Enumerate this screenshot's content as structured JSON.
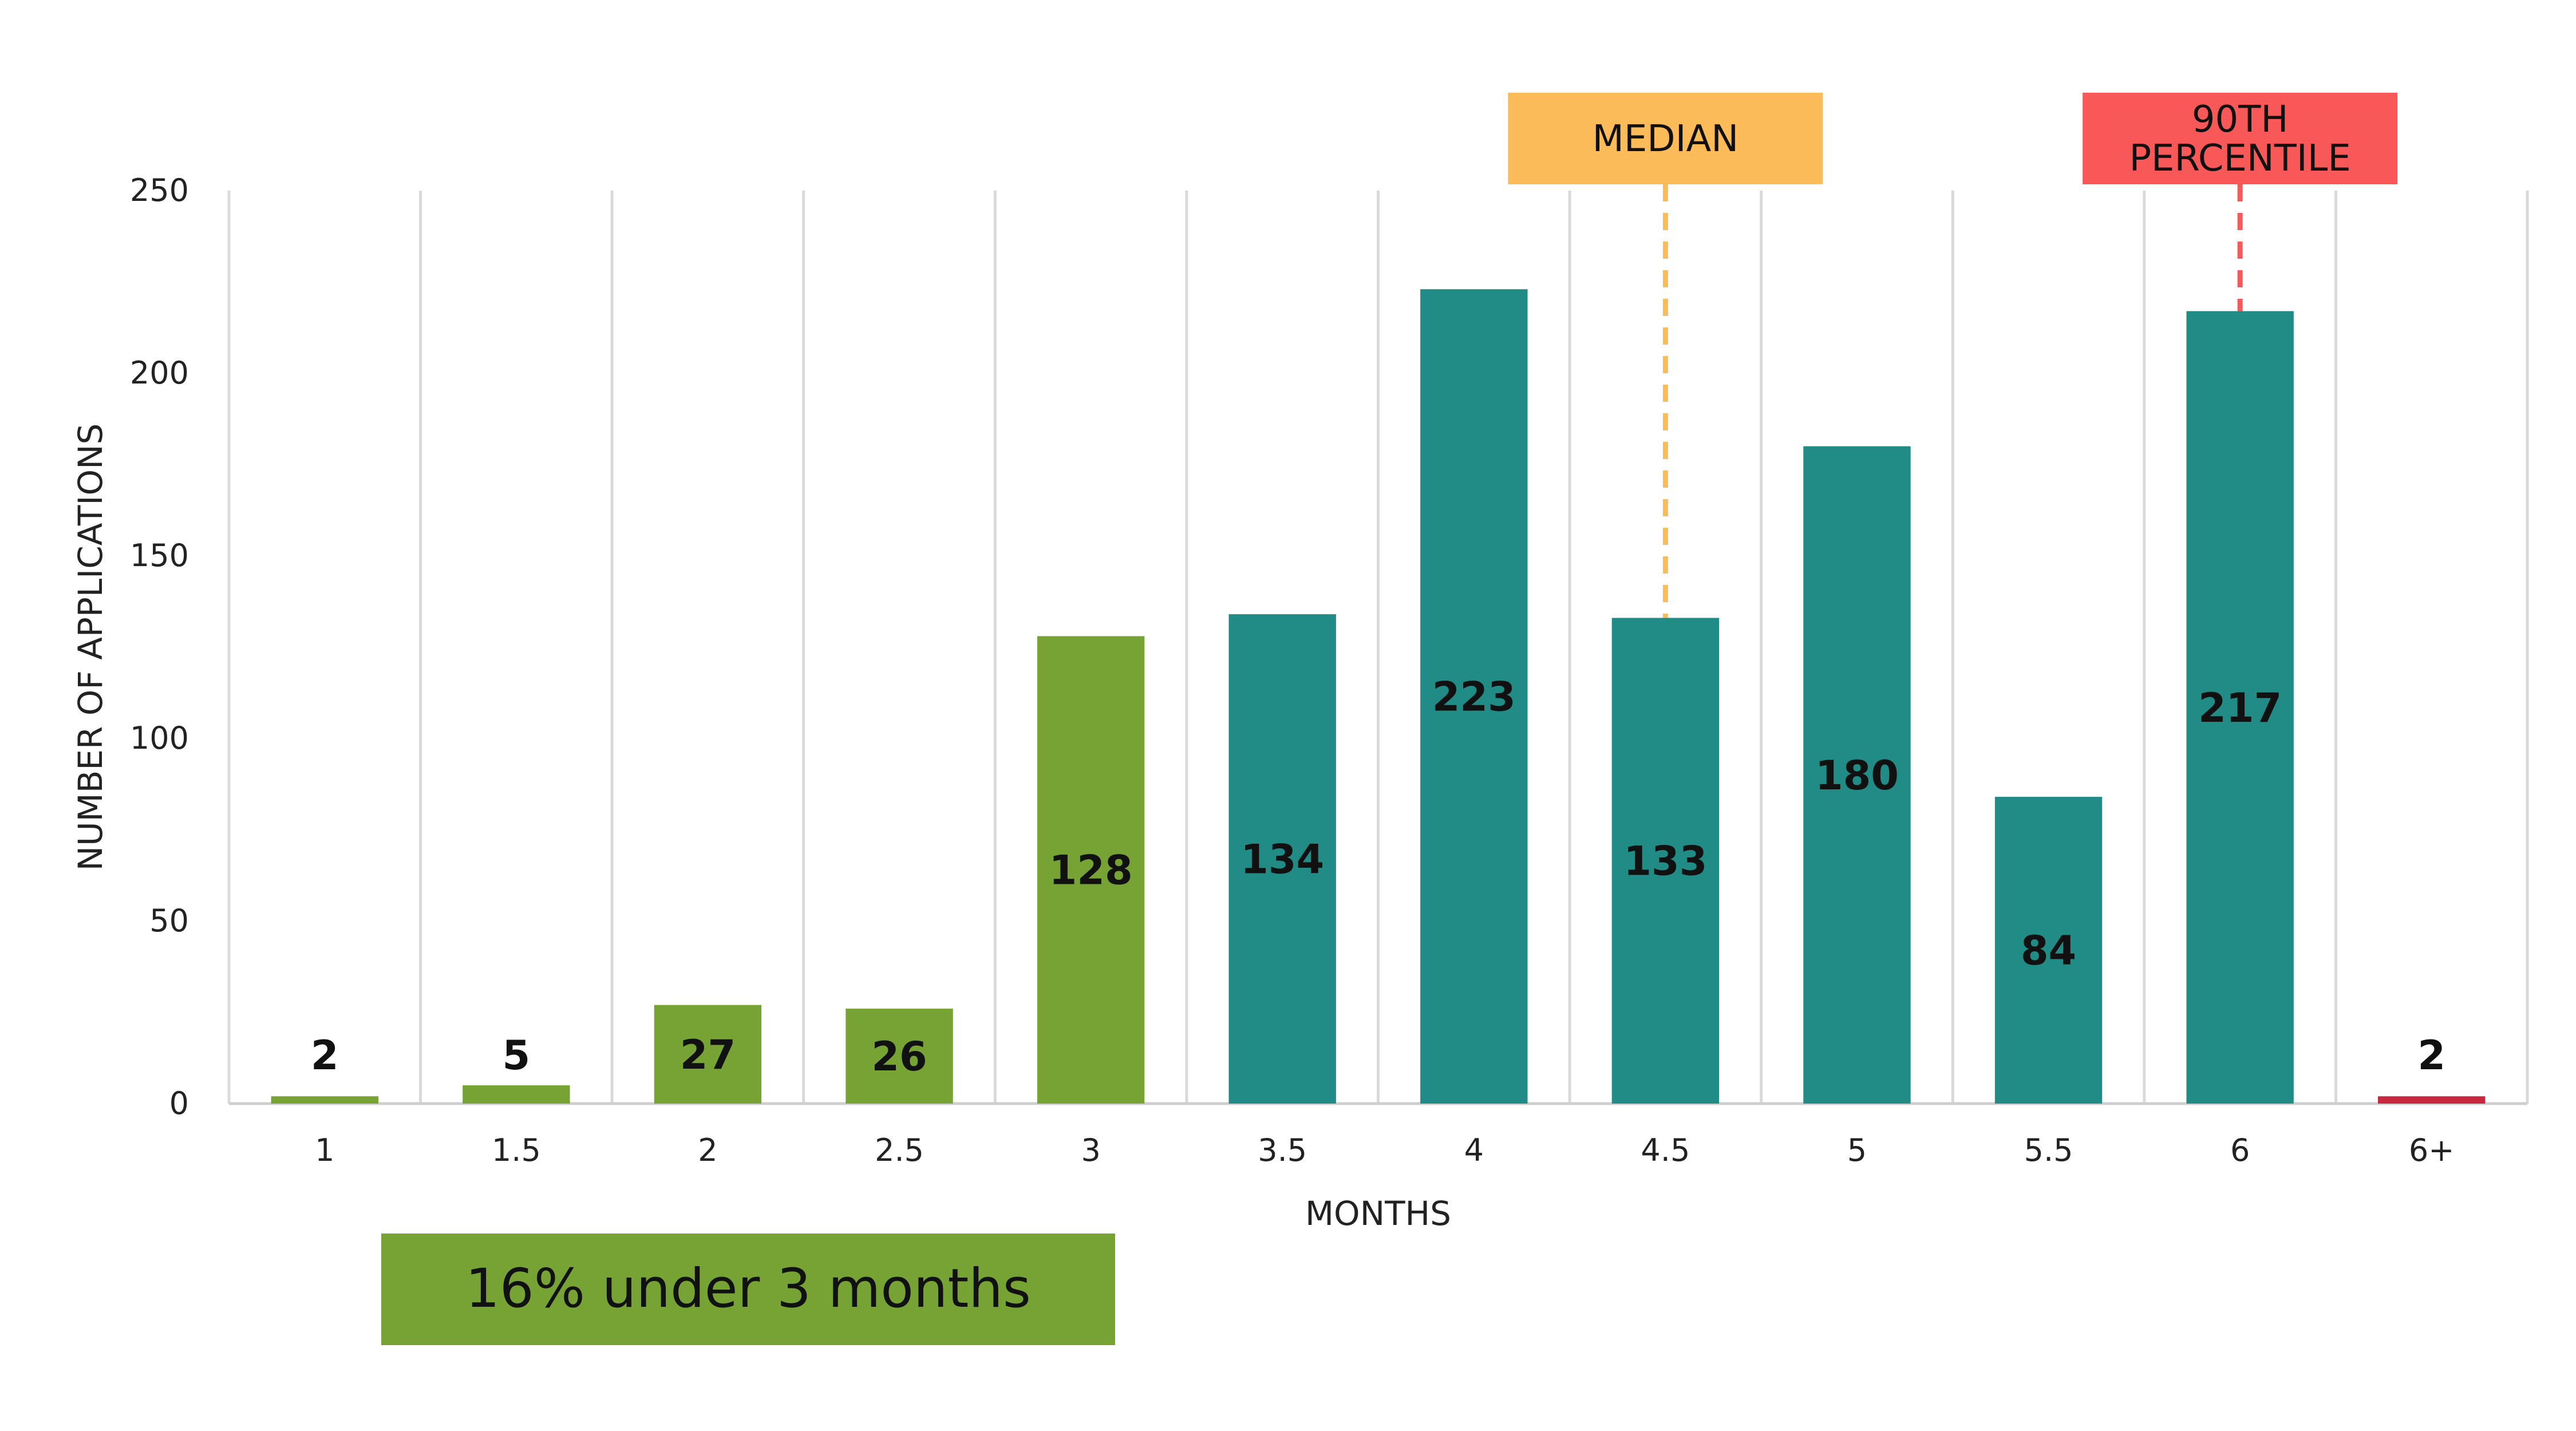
{
  "chart_data": {
    "type": "bar",
    "categories": [
      "1",
      "1.5",
      "2",
      "2.5",
      "3",
      "3.5",
      "4",
      "4.5",
      "5",
      "5.5",
      "6",
      "6+"
    ],
    "values": [
      2,
      5,
      27,
      26,
      128,
      134,
      223,
      133,
      180,
      84,
      217,
      2
    ],
    "data_labels": [
      "2",
      "5",
      "27",
      "26",
      "128",
      "134",
      "223",
      "133",
      "180",
      "84",
      "217",
      "2"
    ],
    "bar_colors": [
      "#76a333",
      "#76a333",
      "#76a333",
      "#76a333",
      "#76a333",
      "#218b86",
      "#218b86",
      "#218b86",
      "#218b86",
      "#218b86",
      "#218b86",
      "#c8283f"
    ],
    "title": "",
    "xlabel": "MONTHS",
    "ylabel": "NUMBER OF APPLICATIONS",
    "ylim": [
      0,
      250
    ],
    "yticks": [
      0,
      50,
      100,
      150,
      200,
      250
    ],
    "grid": "vertical lines",
    "legend": "none",
    "annotations": [
      {
        "label_lines": [
          "MEDIAN"
        ],
        "category": "4.5",
        "color": "#fcbb59"
      },
      {
        "label_lines": [
          "90TH",
          "PERCENTILE"
        ],
        "category": "6",
        "color": "#f95859"
      }
    ],
    "note": {
      "text": "16% under 3 months",
      "color": "#76a333"
    }
  }
}
